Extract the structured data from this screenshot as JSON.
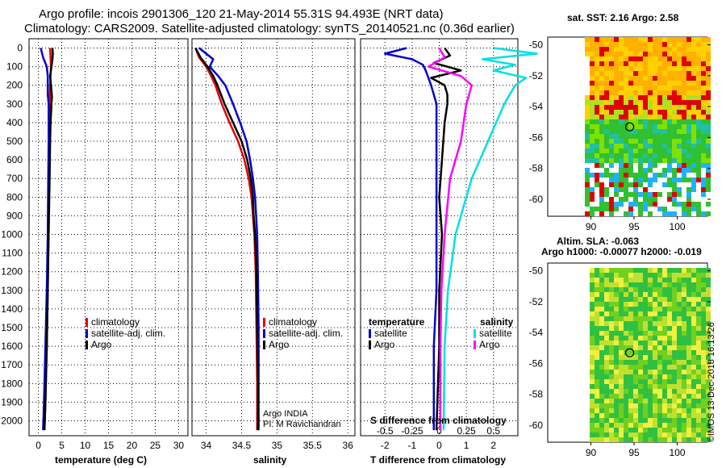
{
  "titles": {
    "line1": "Argo profile: incois 2901306_120 21-May-2014 55.31S 94.493E (NRT data)",
    "line2": "Climatology: CARS2009. Satellite-adjusted climatology: synTS_20140521.nc (0.36d earlier)"
  },
  "depth_axis": {
    "ticks": [
      0,
      100,
      200,
      300,
      400,
      500,
      600,
      700,
      800,
      900,
      1000,
      1100,
      1200,
      1300,
      1400,
      1500,
      1600,
      1700,
      1800,
      1900,
      2000
    ],
    "range": [
      -50,
      2080
    ]
  },
  "chart_data": [
    {
      "type": "line",
      "title": "temperature profile",
      "xlabel": "temperature (deg C)",
      "xticks": [
        0,
        5,
        10,
        15,
        20,
        25,
        30
      ],
      "xlim": [
        -2,
        32
      ],
      "legend": [
        "climatology",
        "satellite-adj. clim.",
        "Argo"
      ],
      "series": [
        {
          "name": "climatology",
          "color": "#e00000",
          "depth": [
            0,
            50,
            100,
            150,
            200,
            300,
            500,
            700,
            1000,
            1300,
            1600,
            1900,
            2050
          ],
          "values": [
            2.5,
            2.6,
            2.7,
            2.6,
            2.5,
            2.4,
            2.3,
            2.3,
            2.1,
            2.0,
            1.8,
            1.5,
            1.3
          ]
        },
        {
          "name": "satellite-adj. clim.",
          "color": "#0000d0",
          "depth": [
            0,
            50,
            100,
            150,
            200,
            250,
            300,
            500,
            700,
            1000,
            1300,
            1600,
            1900,
            2050
          ],
          "values": [
            0.5,
            1.0,
            1.8,
            2.0,
            2.0,
            2.0,
            2.2,
            2.2,
            2.1,
            2.0,
            1.8,
            1.5,
            1.2,
            1.0
          ]
        },
        {
          "name": "Argo",
          "color": "#000000",
          "depth": [
            0,
            30,
            60,
            100,
            150,
            200,
            260,
            300,
            400,
            500,
            700,
            1000,
            1300,
            1600,
            1900,
            2050
          ],
          "values": [
            3.0,
            3.1,
            3.0,
            2.8,
            2.5,
            2.7,
            2.9,
            2.8,
            2.6,
            2.5,
            2.4,
            2.2,
            2.0,
            1.8,
            1.5,
            1.3
          ]
        }
      ]
    },
    {
      "type": "line",
      "title": "salinity profile",
      "xlabel": "salinity",
      "xticks": [
        34,
        34.5,
        35,
        35.5,
        36
      ],
      "xlim": [
        33.8,
        36.1
      ],
      "legend": [
        "climatology",
        "satellite-adj. clim.",
        "Argo"
      ],
      "annotation": [
        "Argo INDIA",
        "PI: M Ravichandran"
      ],
      "series": [
        {
          "name": "climatology",
          "color": "#e00000",
          "depth": [
            0,
            50,
            100,
            150,
            200,
            300,
            400,
            500,
            600,
            700,
            800,
            1000,
            1200,
            1500,
            1800,
            2050
          ],
          "values": [
            33.85,
            33.9,
            34.0,
            34.07,
            34.13,
            34.22,
            34.33,
            34.45,
            34.54,
            34.6,
            34.64,
            34.68,
            34.7,
            34.71,
            34.72,
            34.72
          ]
        },
        {
          "name": "satellite-adj. clim.",
          "color": "#0000d0",
          "depth": [
            0,
            30,
            60,
            100,
            150,
            200,
            300,
            400,
            500,
            600,
            700,
            800,
            1000,
            1200,
            1500,
            1800,
            2050
          ],
          "values": [
            33.9,
            34.0,
            34.1,
            34.05,
            34.17,
            34.27,
            34.38,
            34.48,
            34.57,
            34.62,
            34.66,
            34.69,
            34.72,
            34.73,
            34.74,
            34.74,
            34.74
          ]
        },
        {
          "name": "Argo",
          "color": "#000000",
          "depth": [
            0,
            50,
            100,
            150,
            200,
            300,
            400,
            500,
            600,
            700,
            800,
            900,
            1000,
            1200,
            1500,
            1800,
            2050
          ],
          "values": [
            33.85,
            33.92,
            34.02,
            34.1,
            34.16,
            34.26,
            34.38,
            34.5,
            34.58,
            34.63,
            34.66,
            34.67,
            34.69,
            34.71,
            34.72,
            34.73,
            34.73
          ]
        }
      ]
    },
    {
      "type": "line",
      "title": "difference from climatology",
      "xlabel": "T difference from climatology",
      "xlabel2": "S difference from climatology",
      "xticks": [
        -2,
        -1,
        0,
        1,
        2
      ],
      "xticks2": [
        "-0.5",
        "-0.25",
        "0",
        "0.25",
        "0.5"
      ],
      "xlim": [
        -2.9,
        2.9
      ],
      "legend_left": {
        "heading": "temperature",
        "items": [
          "satellite",
          "Argo"
        ]
      },
      "legend_right": {
        "heading": "salinity",
        "items": [
          "satellite",
          "Argo"
        ]
      },
      "series": [
        {
          "name": "T satellite",
          "color": "#0000d0",
          "depth": [
            0,
            30,
            60,
            90,
            120,
            160,
            200,
            250,
            300,
            500,
            700,
            1000,
            1300,
            1600,
            2050
          ],
          "values": [
            -1.2,
            -2.0,
            -1.0,
            -0.6,
            -0.5,
            -0.4,
            -0.3,
            -0.2,
            -0.1,
            -0.1,
            -0.1,
            -0.1,
            -0.1,
            -0.2,
            -0.2
          ]
        },
        {
          "name": "T Argo",
          "color": "#000000",
          "depth": [
            0,
            40,
            80,
            120,
            160,
            200,
            250,
            300,
            400,
            600,
            800,
            1000,
            1300,
            1600,
            2050
          ],
          "values": [
            0.2,
            0.4,
            -0.2,
            0.8,
            -0.3,
            0.2,
            0.3,
            0.3,
            0.2,
            0.1,
            0.0,
            0.1,
            0.0,
            0.0,
            -0.1
          ]
        },
        {
          "name": "S satellite",
          "color": "#00e0e0",
          "depth": [
            0,
            30,
            60,
            90,
            120,
            160,
            200,
            300,
            500,
            700,
            1000,
            1300,
            1600,
            2050
          ],
          "values": [
            0.5,
            0.9,
            0.4,
            0.7,
            0.5,
            0.8,
            0.7,
            0.6,
            0.45,
            0.3,
            0.15,
            0.08,
            0.05,
            0.04
          ]
        },
        {
          "name": "S Argo",
          "color": "#ff00ff",
          "depth": [
            0,
            50,
            100,
            150,
            200,
            300,
            500,
            700,
            1000,
            1300,
            1600,
            2050
          ],
          "values": [
            0.0,
            0.05,
            -0.1,
            0.2,
            0.3,
            0.25,
            0.2,
            0.1,
            0.05,
            0.02,
            0.01,
            0.01
          ]
        }
      ]
    }
  ],
  "maps": {
    "sst": {
      "title": "sat. SST: 2.16  Argo: 2.58",
      "lat_ticks": [
        "-50",
        "-52",
        "-54",
        "-56",
        "-58",
        "-60"
      ],
      "lon_ticks": [
        "90",
        "95",
        "100"
      ],
      "marker": {
        "lon": 94.493,
        "lat": -55.31
      }
    },
    "sla": {
      "title1": "Altim. SLA: -0.063",
      "title2": "Argo h1000: -0.00077  h2000: -0.019",
      "lat_ticks": [
        "-50",
        "-52",
        "-54",
        "-56",
        "-58",
        "-60"
      ],
      "lon_ticks": [
        "90",
        "95",
        "100"
      ],
      "marker": {
        "lon": 94.493,
        "lat": -55.31
      }
    }
  },
  "footer": {
    "credit": "©IMOS 13-Dec-2018 16:13:26"
  }
}
